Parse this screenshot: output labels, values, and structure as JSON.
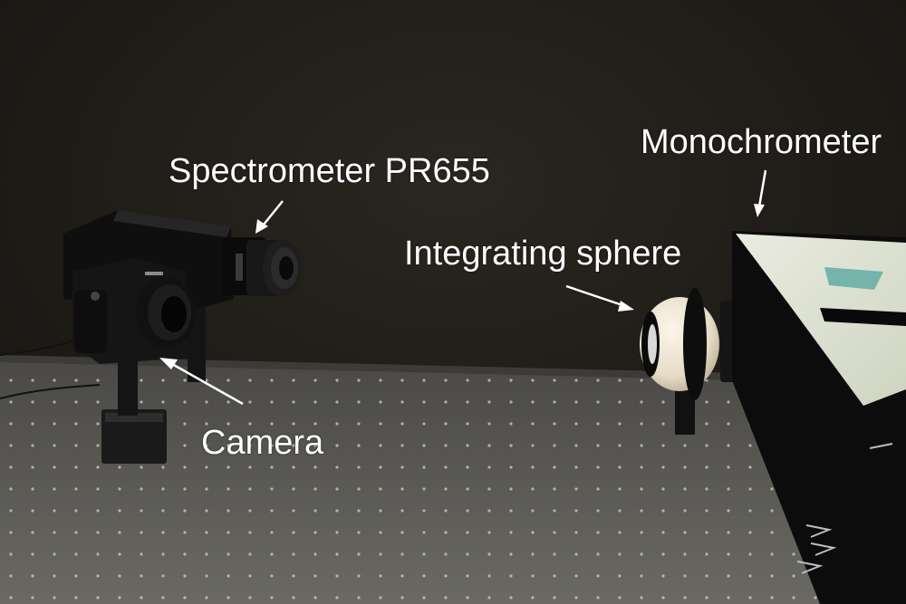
{
  "labels": {
    "monochrometer": "Monochrometer",
    "spectrometer": "Spectrometer PR655",
    "integrating_sphere": "Integrating sphere",
    "camera": "Camera"
  },
  "colors": {
    "background_wall": "#1c1a16",
    "optical_table": "#5c5b57",
    "label_text": "#ffffff",
    "monochrometer_top": "#dfe3d4",
    "sphere": "#efe8d8"
  }
}
